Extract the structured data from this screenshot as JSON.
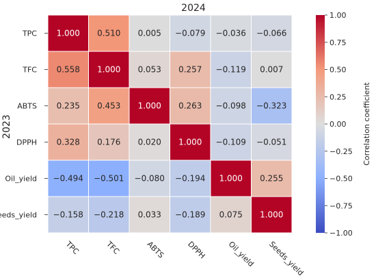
{
  "chart_data": {
    "type": "heatmap",
    "title": "2024",
    "ylabel": "2023",
    "xlabel": "",
    "x_categories": [
      "TPC",
      "TFC",
      "ABTS",
      "DPPH",
      "Oil_yield",
      "Seeds_yield"
    ],
    "y_categories": [
      "TPC",
      "TFC",
      "ABTS",
      "DPPH",
      "Oil_yield",
      "Seeds_yield"
    ],
    "values": [
      [
        1.0,
        0.51,
        0.005,
        -0.079,
        -0.036,
        -0.066
      ],
      [
        0.558,
        1.0,
        0.053,
        0.257,
        -0.119,
        0.007
      ],
      [
        0.235,
        0.453,
        1.0,
        0.263,
        -0.098,
        -0.323
      ],
      [
        0.328,
        0.176,
        0.02,
        1.0,
        -0.109,
        -0.051
      ],
      [
        -0.494,
        -0.501,
        -0.08,
        -0.194,
        1.0,
        0.255
      ],
      [
        -0.158,
        -0.218,
        0.033,
        -0.189,
        0.075,
        1.0
      ]
    ],
    "value_labels": [
      [
        "1.000",
        "0.510",
        "0.005",
        "−0.079",
        "−0.036",
        "−0.066"
      ],
      [
        "0.558",
        "1.000",
        "0.053",
        "0.257",
        "−0.119",
        "0.007"
      ],
      [
        "0.235",
        "0.453",
        "1.000",
        "0.263",
        "−0.098",
        "−0.323"
      ],
      [
        "0.328",
        "0.176",
        "0.020",
        "1.000",
        "−0.109",
        "−0.051"
      ],
      [
        "−0.494",
        "−0.501",
        "−0.080",
        "−0.194",
        "1.000",
        "0.255"
      ],
      [
        "−0.158",
        "−0.218",
        "0.033",
        "−0.189",
        "0.075",
        "1.000"
      ]
    ],
    "colorbar": {
      "label": "Correlation coefficient",
      "range": [
        -1,
        1
      ],
      "ticks": [
        1.0,
        0.75,
        0.5,
        0.25,
        0.0,
        -0.25,
        -0.5,
        -0.75,
        -1.0
      ],
      "tick_labels": [
        "1.00",
        "0.75",
        "0.50",
        "0.25",
        "0.00",
        "−0.25",
        "−0.50",
        "−0.75",
        "−1.00"
      ],
      "colormap": "coolwarm",
      "colors": {
        "low": "#3b4cc0",
        "mid": "#dddddd",
        "high": "#b40426"
      }
    },
    "x_tick_rotation_deg": -45,
    "grid": false
  }
}
